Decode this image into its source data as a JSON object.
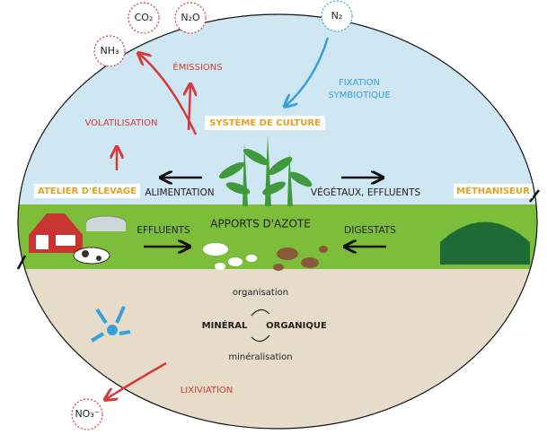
{
  "gases": {
    "co2": "CO₂",
    "n2o": "N₂O",
    "nh3": "NH₃",
    "n2": "N₂",
    "no3": "NO₃⁻"
  },
  "flows": {
    "emissions": "ÉMISSIONS",
    "fixation": [
      "FIXATION",
      "SYMBIOTIQUE"
    ],
    "volatilisation": "VOLATILISATION",
    "lixiviation": "LIXIVIATION",
    "alimentation": "ALIMENTATION",
    "vegetaux": "VÉGÉTAUX, EFFLUENTS",
    "effluents": "EFFLUENTS",
    "digestats": "DIGESTATS"
  },
  "labels": {
    "systeme": "SYSTÈME DE CULTURE",
    "atelier": "ATELIER D'ÉLEVAGE",
    "methaniseur": "MÉTHANISEUR",
    "apports": "APPORTS D'AZOTE"
  },
  "cycle": {
    "organisation": "organisation",
    "mineral": "MINÉRAL",
    "organique": "ORGANIQUE",
    "mineralisation": "minéralisation"
  }
}
